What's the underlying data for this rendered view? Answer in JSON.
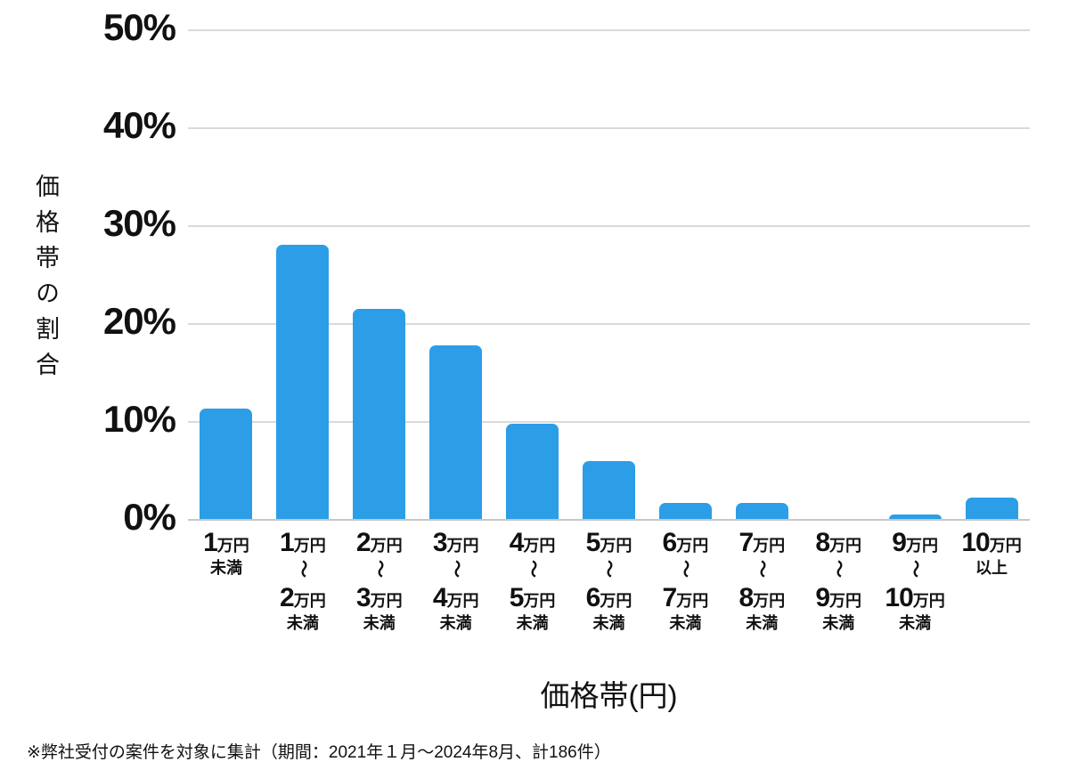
{
  "chart_data": {
    "type": "bar",
    "title": "",
    "categories": [
      [
        "1万円",
        "未満"
      ],
      [
        "1万円",
        "～",
        "2万円",
        "未満"
      ],
      [
        "2万円",
        "～",
        "3万円",
        "未満"
      ],
      [
        "3万円",
        "～",
        "4万円",
        "未満"
      ],
      [
        "4万円",
        "～",
        "5万円",
        "未満"
      ],
      [
        "5万円",
        "～",
        "6万円",
        "未満"
      ],
      [
        "6万円",
        "～",
        "7万円",
        "未満"
      ],
      [
        "7万円",
        "～",
        "8万円",
        "未満"
      ],
      [
        "8万円",
        "～",
        "9万円",
        "未満"
      ],
      [
        "9万円",
        "～",
        "10万円",
        "未満"
      ],
      [
        "10万円",
        "以上"
      ]
    ],
    "values": [
      11.3,
      28.0,
      21.5,
      17.7,
      9.7,
      5.9,
      1.6,
      1.6,
      0,
      0.5,
      2.2
    ],
    "xlabel": "価格帯(円)",
    "ylabel": "価格帯の割合",
    "y_ticks": [
      "50%",
      "40%",
      "30%",
      "20%",
      "10%",
      "0%"
    ],
    "ylim": [
      0,
      50
    ],
    "grid": true,
    "legend_position": "none",
    "bar_color": "#2b9ee7",
    "gridline_color": "#dadada"
  },
  "footnote": {
    "text": "※弊社受付の案件を対象に集計（期間：2021年１月～2024年8月、計186件）"
  }
}
